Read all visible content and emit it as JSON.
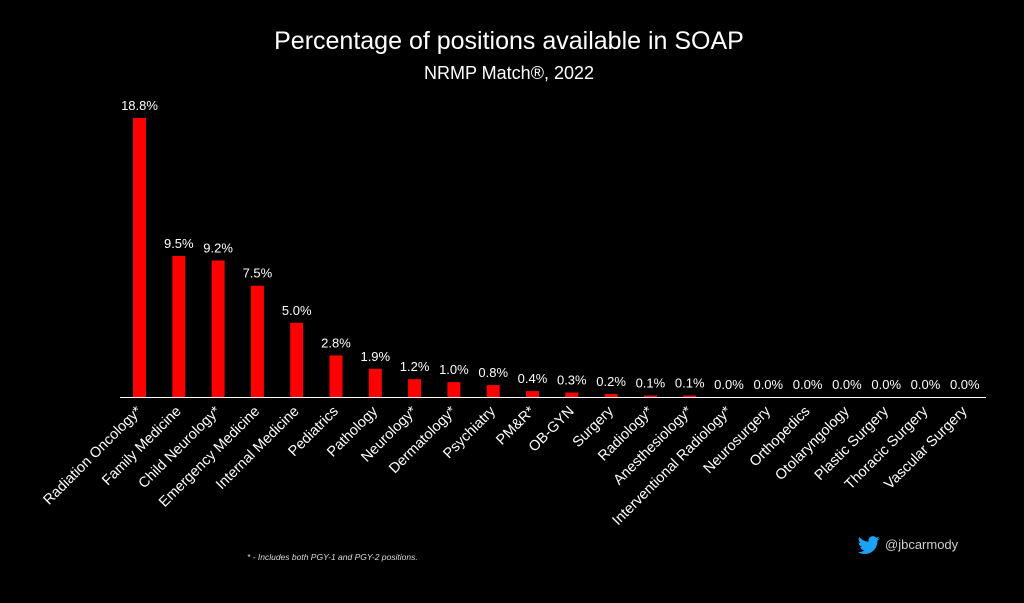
{
  "chart_data": {
    "type": "bar",
    "title": "Percentage of positions available in SOAP",
    "subtitle": "NRMP Match®, 2022",
    "categories": [
      "Radiation Oncology*",
      "Family Medicine",
      "Child Neurology*",
      "Emergency Medicine",
      "Internal Medicine",
      "Pediatrics",
      "Pathology",
      "Neurology*",
      "Dermatology*",
      "Psychiatry",
      "PM&R*",
      "OB-GYN",
      "Surgery",
      "Radiology*",
      "Anesthesiology*",
      "Interventional Radiology*",
      "Neurosurgery",
      "Orthopedics",
      "Otolaryngology",
      "Plastic Surgery",
      "Thoracic Surgery",
      "Vascular Surgery"
    ],
    "values": [
      18.8,
      9.5,
      9.2,
      7.5,
      5.0,
      2.8,
      1.9,
      1.2,
      1.0,
      0.8,
      0.4,
      0.3,
      0.2,
      0.1,
      0.1,
      0.0,
      0.0,
      0.0,
      0.0,
      0.0,
      0.0,
      0.0
    ],
    "data_labels": [
      "18.8%",
      "9.5%",
      "9.2%",
      "7.5%",
      "5.0%",
      "2.8%",
      "1.9%",
      "1.2%",
      "1.0%",
      "0.8%",
      "0.4%",
      "0.3%",
      "0.2%",
      "0.1%",
      "0.1%",
      "0.0%",
      "0.0%",
      "0.0%",
      "0.0%",
      "0.0%",
      "0.0%",
      "0.0%"
    ],
    "ylim": [
      0,
      18.8
    ],
    "grid": false,
    "legend": "none",
    "bar_color": "#ff0000",
    "footnote": "* - Includes both PGY-1 and PGY-2 positions.",
    "credit": "@jbcarmody",
    "credit_icon": "twitter-bird-icon",
    "credit_color": "#1da1f2"
  }
}
